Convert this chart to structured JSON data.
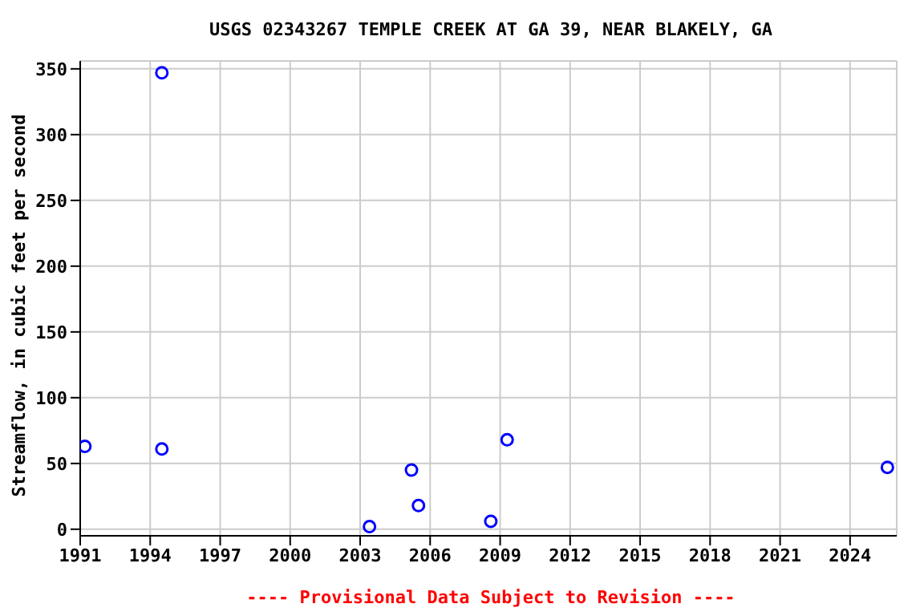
{
  "chart_data": {
    "type": "scatter",
    "title": "USGS 02343267 TEMPLE CREEK AT GA 39, NEAR BLAKELY, GA",
    "ylabel": "Streamflow, in cubic feet per second",
    "annotations": [
      "---- Provisional Data Subject to Revision ----"
    ],
    "x": [
      1991.2,
      1994.5,
      1994.5,
      2003.4,
      2005.2,
      2005.5,
      2008.6,
      2009.3,
      2025.6
    ],
    "series": [
      {
        "color": "#0000ff",
        "values": [
          63,
          347,
          61,
          2,
          45,
          18,
          6,
          68,
          47
        ]
      }
    ],
    "xlim": [
      1991,
      2026
    ],
    "xticks": [
      1991,
      1994,
      1997,
      2000,
      2003,
      2006,
      2009,
      2012,
      2015,
      2018,
      2021,
      2024
    ],
    "ylim": [
      -5,
      356
    ],
    "yticks": [
      0,
      50,
      100,
      150,
      200,
      250,
      300,
      350
    ],
    "grid": true,
    "marker": "circle"
  }
}
